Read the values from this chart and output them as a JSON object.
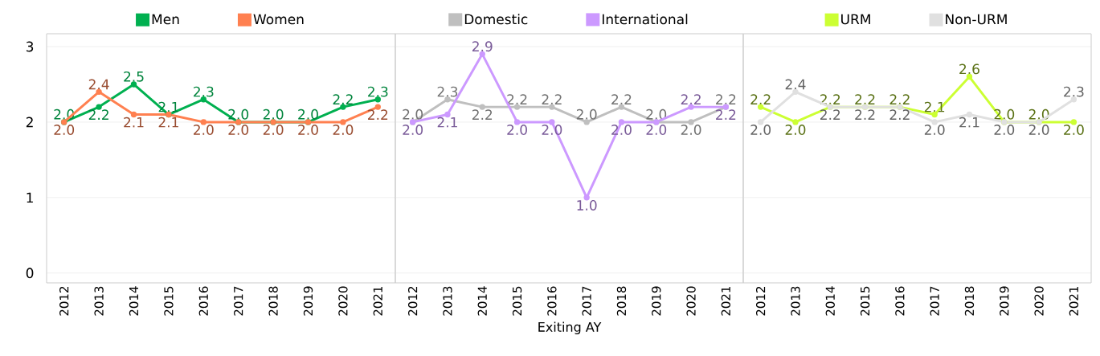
{
  "chart_data": [
    {
      "type": "line",
      "categories": [
        "2012",
        "2013",
        "2014",
        "2015",
        "2016",
        "2017",
        "2018",
        "2019",
        "2020",
        "2021"
      ],
      "ylim": [
        -0.13,
        3.17
      ],
      "yticks": [
        0,
        1,
        2,
        3
      ],
      "grid": "y",
      "legend": "top",
      "marker": "circle",
      "tick_labels": true,
      "series": [
        {
          "name": "Men",
          "color": "#00b050",
          "values": [
            2.0,
            2.2,
            2.5,
            2.1,
            2.3,
            2.0,
            2.0,
            2.0,
            2.2,
            2.3
          ],
          "value_labels": [
            "2.0",
            "2.2",
            "2.5",
            "2.1",
            "2.3",
            "2.0",
            "2.0",
            "2.0",
            "2.2",
            "2.3"
          ]
        },
        {
          "name": "Women",
          "color": "#ff8050",
          "values": [
            2.0,
            2.4,
            2.1,
            2.1,
            2.0,
            2.0,
            2.0,
            2.0,
            2.0,
            2.2
          ],
          "value_labels": [
            "2.0",
            "2.4",
            "2.1",
            "2.1",
            "2.0",
            "2.0",
            "2.0",
            "2.0",
            "2.0",
            "2.2"
          ]
        }
      ]
    },
    {
      "type": "line",
      "categories": [
        "2012",
        "2013",
        "2014",
        "2015",
        "2016",
        "2017",
        "2018",
        "2019",
        "2020",
        "2021"
      ],
      "xlabel": "Exiting AY",
      "ylim": [
        -0.13,
        3.17
      ],
      "yticks": [
        0,
        1,
        2,
        3
      ],
      "grid": "y",
      "legend": "top",
      "marker": "circle",
      "tick_labels": "x",
      "series": [
        {
          "name": "Domestic",
          "color": "#bfbfbf",
          "values": [
            2.0,
            2.3,
            2.2,
            2.2,
            2.2,
            2.0,
            2.2,
            2.0,
            2.0,
            2.2
          ],
          "value_labels": [
            "2.0",
            "2.3",
            "2.2",
            "2.2",
            "2.2",
            "2.0",
            "2.2",
            "2.0",
            "2.0",
            "2.2"
          ]
        },
        {
          "name": "International",
          "color": "#cc99ff",
          "values": [
            2.0,
            2.1,
            2.9,
            2.0,
            2.0,
            1.0,
            2.0,
            2.0,
            2.2,
            2.2
          ],
          "value_labels": [
            "2.0",
            "2.1",
            "2.9",
            "2.0",
            "2.0",
            "1.0",
            "2.0",
            "2.0",
            "2.2",
            "2.2"
          ]
        }
      ]
    },
    {
      "type": "line",
      "categories": [
        "2012",
        "2013",
        "2014",
        "2015",
        "2016",
        "2017",
        "2018",
        "2019",
        "2020",
        "2021"
      ],
      "ylim": [
        -0.13,
        3.17
      ],
      "yticks": [
        0,
        1,
        2,
        3
      ],
      "grid": "y",
      "legend": "top",
      "marker": "circle",
      "tick_labels": "x",
      "series": [
        {
          "name": "URM",
          "color": "#ccff33",
          "values": [
            2.2,
            2.0,
            2.2,
            2.2,
            2.2,
            2.1,
            2.6,
            2.0,
            2.0,
            2.0
          ],
          "value_labels": [
            "2.2",
            "2.0",
            "2.2",
            "2.2",
            "2.2",
            "2.1",
            "2.6",
            "2.0",
            "2.0",
            "2.0"
          ]
        },
        {
          "name": "Non-URM",
          "color": "#e0e0e0",
          "values": [
            2.0,
            2.4,
            2.2,
            2.2,
            2.2,
            2.0,
            2.1,
            2.0,
            2.0,
            2.3
          ],
          "value_labels": [
            "2.0",
            "2.4",
            "2.2",
            "2.2",
            "2.2",
            "2.0",
            "2.1",
            "2.0",
            "2.0",
            "2.3"
          ]
        }
      ]
    }
  ]
}
